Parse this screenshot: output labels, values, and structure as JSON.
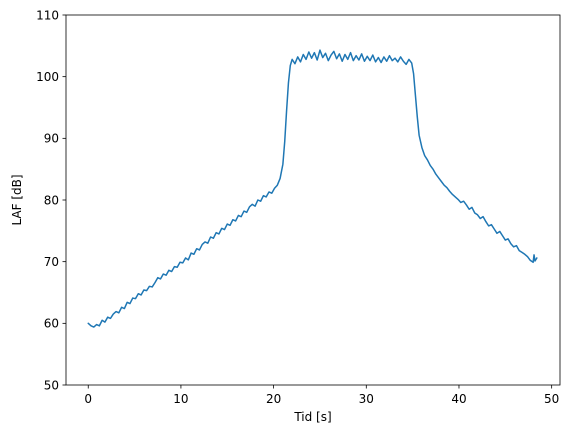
{
  "chart_data": {
    "type": "line",
    "title": "",
    "xlabel": "Tid [s]",
    "ylabel": "LAF [dB]",
    "xlim": [
      -2.4,
      50.9
    ],
    "ylim": [
      50,
      110
    ],
    "xticks": [
      0,
      10,
      20,
      30,
      40,
      50
    ],
    "yticks": [
      50,
      60,
      70,
      80,
      90,
      100,
      110
    ],
    "grid": false,
    "legend": "none",
    "line_color": "#1f77b4",
    "series": [
      {
        "points": [
          [
            0.0,
            60.0
          ],
          [
            0.3,
            59.6
          ],
          [
            0.6,
            59.4
          ],
          [
            0.9,
            59.8
          ],
          [
            1.2,
            59.6
          ],
          [
            1.5,
            60.5
          ],
          [
            1.8,
            60.2
          ],
          [
            2.1,
            61.0
          ],
          [
            2.4,
            60.8
          ],
          [
            2.7,
            61.5
          ],
          [
            3.0,
            61.9
          ],
          [
            3.3,
            61.7
          ],
          [
            3.6,
            62.6
          ],
          [
            3.9,
            62.4
          ],
          [
            4.2,
            63.4
          ],
          [
            4.5,
            63.2
          ],
          [
            4.8,
            64.1
          ],
          [
            5.1,
            64.0
          ],
          [
            5.4,
            64.8
          ],
          [
            5.7,
            64.6
          ],
          [
            6.0,
            65.4
          ],
          [
            6.3,
            65.3
          ],
          [
            6.6,
            66.0
          ],
          [
            6.9,
            65.9
          ],
          [
            7.2,
            66.6
          ],
          [
            7.5,
            67.4
          ],
          [
            7.8,
            67.2
          ],
          [
            8.1,
            68.0
          ],
          [
            8.4,
            67.8
          ],
          [
            8.7,
            68.6
          ],
          [
            9.0,
            68.4
          ],
          [
            9.3,
            69.2
          ],
          [
            9.6,
            69.1
          ],
          [
            9.9,
            69.9
          ],
          [
            10.2,
            69.8
          ],
          [
            10.5,
            70.6
          ],
          [
            10.8,
            70.3
          ],
          [
            11.1,
            71.4
          ],
          [
            11.4,
            71.2
          ],
          [
            11.7,
            72.1
          ],
          [
            12.0,
            71.9
          ],
          [
            12.3,
            72.8
          ],
          [
            12.6,
            73.2
          ],
          [
            12.9,
            73.0
          ],
          [
            13.2,
            74.0
          ],
          [
            13.5,
            73.8
          ],
          [
            13.8,
            74.7
          ],
          [
            14.1,
            74.5
          ],
          [
            14.4,
            75.4
          ],
          [
            14.7,
            75.2
          ],
          [
            15.0,
            76.1
          ],
          [
            15.3,
            75.9
          ],
          [
            15.6,
            76.8
          ],
          [
            15.9,
            76.6
          ],
          [
            16.2,
            77.5
          ],
          [
            16.5,
            77.3
          ],
          [
            16.8,
            78.2
          ],
          [
            17.1,
            78.0
          ],
          [
            17.4,
            78.9
          ],
          [
            17.7,
            79.3
          ],
          [
            18.0,
            79.0
          ],
          [
            18.3,
            80.0
          ],
          [
            18.6,
            79.8
          ],
          [
            18.9,
            80.7
          ],
          [
            19.2,
            80.5
          ],
          [
            19.5,
            81.3
          ],
          [
            19.8,
            81.1
          ],
          [
            20.1,
            81.9
          ],
          [
            20.4,
            82.4
          ],
          [
            20.7,
            83.5
          ],
          [
            21.0,
            85.8
          ],
          [
            21.2,
            89.5
          ],
          [
            21.4,
            94.5
          ],
          [
            21.6,
            99.0
          ],
          [
            21.8,
            101.8
          ],
          [
            22.0,
            102.8
          ],
          [
            22.3,
            102.1
          ],
          [
            22.6,
            103.2
          ],
          [
            22.9,
            102.4
          ],
          [
            23.2,
            103.6
          ],
          [
            23.5,
            102.8
          ],
          [
            23.8,
            104.0
          ],
          [
            24.1,
            103.0
          ],
          [
            24.4,
            103.9
          ],
          [
            24.7,
            102.7
          ],
          [
            25.0,
            104.3
          ],
          [
            25.3,
            103.1
          ],
          [
            25.6,
            103.8
          ],
          [
            25.9,
            102.6
          ],
          [
            26.2,
            103.5
          ],
          [
            26.5,
            104.1
          ],
          [
            26.8,
            102.9
          ],
          [
            27.1,
            103.7
          ],
          [
            27.4,
            102.5
          ],
          [
            27.7,
            103.6
          ],
          [
            28.0,
            102.8
          ],
          [
            28.3,
            103.9
          ],
          [
            28.6,
            102.6
          ],
          [
            28.9,
            103.4
          ],
          [
            29.2,
            102.7
          ],
          [
            29.5,
            103.7
          ],
          [
            29.8,
            102.5
          ],
          [
            30.1,
            103.3
          ],
          [
            30.4,
            102.6
          ],
          [
            30.7,
            103.5
          ],
          [
            31.0,
            102.4
          ],
          [
            31.3,
            103.1
          ],
          [
            31.6,
            102.3
          ],
          [
            31.9,
            103.2
          ],
          [
            32.2,
            102.5
          ],
          [
            32.5,
            103.4
          ],
          [
            32.8,
            102.6
          ],
          [
            33.1,
            103.0
          ],
          [
            33.4,
            102.4
          ],
          [
            33.7,
            103.2
          ],
          [
            34.0,
            102.5
          ],
          [
            34.3,
            102.0
          ],
          [
            34.6,
            102.8
          ],
          [
            34.9,
            102.2
          ],
          [
            35.1,
            100.5
          ],
          [
            35.3,
            97.0
          ],
          [
            35.5,
            93.5
          ],
          [
            35.7,
            90.5
          ],
          [
            36.0,
            88.5
          ],
          [
            36.3,
            87.2
          ],
          [
            36.6,
            86.5
          ],
          [
            36.9,
            85.6
          ],
          [
            37.2,
            85.0
          ],
          [
            37.5,
            84.2
          ],
          [
            37.8,
            83.6
          ],
          [
            38.1,
            83.0
          ],
          [
            38.4,
            82.4
          ],
          [
            38.7,
            82.0
          ],
          [
            39.0,
            81.4
          ],
          [
            39.3,
            80.9
          ],
          [
            39.6,
            80.5
          ],
          [
            39.9,
            80.1
          ],
          [
            40.2,
            79.6
          ],
          [
            40.5,
            79.8
          ],
          [
            40.8,
            79.2
          ],
          [
            41.1,
            78.5
          ],
          [
            41.4,
            78.8
          ],
          [
            41.7,
            77.9
          ],
          [
            42.0,
            77.6
          ],
          [
            42.3,
            77.0
          ],
          [
            42.6,
            77.3
          ],
          [
            42.9,
            76.5
          ],
          [
            43.2,
            75.8
          ],
          [
            43.5,
            76.0
          ],
          [
            43.8,
            75.3
          ],
          [
            44.1,
            74.6
          ],
          [
            44.4,
            74.9
          ],
          [
            44.7,
            74.2
          ],
          [
            45.0,
            73.5
          ],
          [
            45.3,
            73.7
          ],
          [
            45.6,
            72.9
          ],
          [
            45.9,
            72.4
          ],
          [
            46.2,
            72.6
          ],
          [
            46.5,
            71.8
          ],
          [
            46.8,
            71.5
          ],
          [
            47.1,
            71.2
          ],
          [
            47.4,
            70.8
          ],
          [
            47.7,
            70.2
          ],
          [
            48.0,
            69.9
          ],
          [
            48.1,
            71.1
          ],
          [
            48.2,
            70.1
          ],
          [
            48.4,
            70.6
          ]
        ]
      }
    ]
  }
}
